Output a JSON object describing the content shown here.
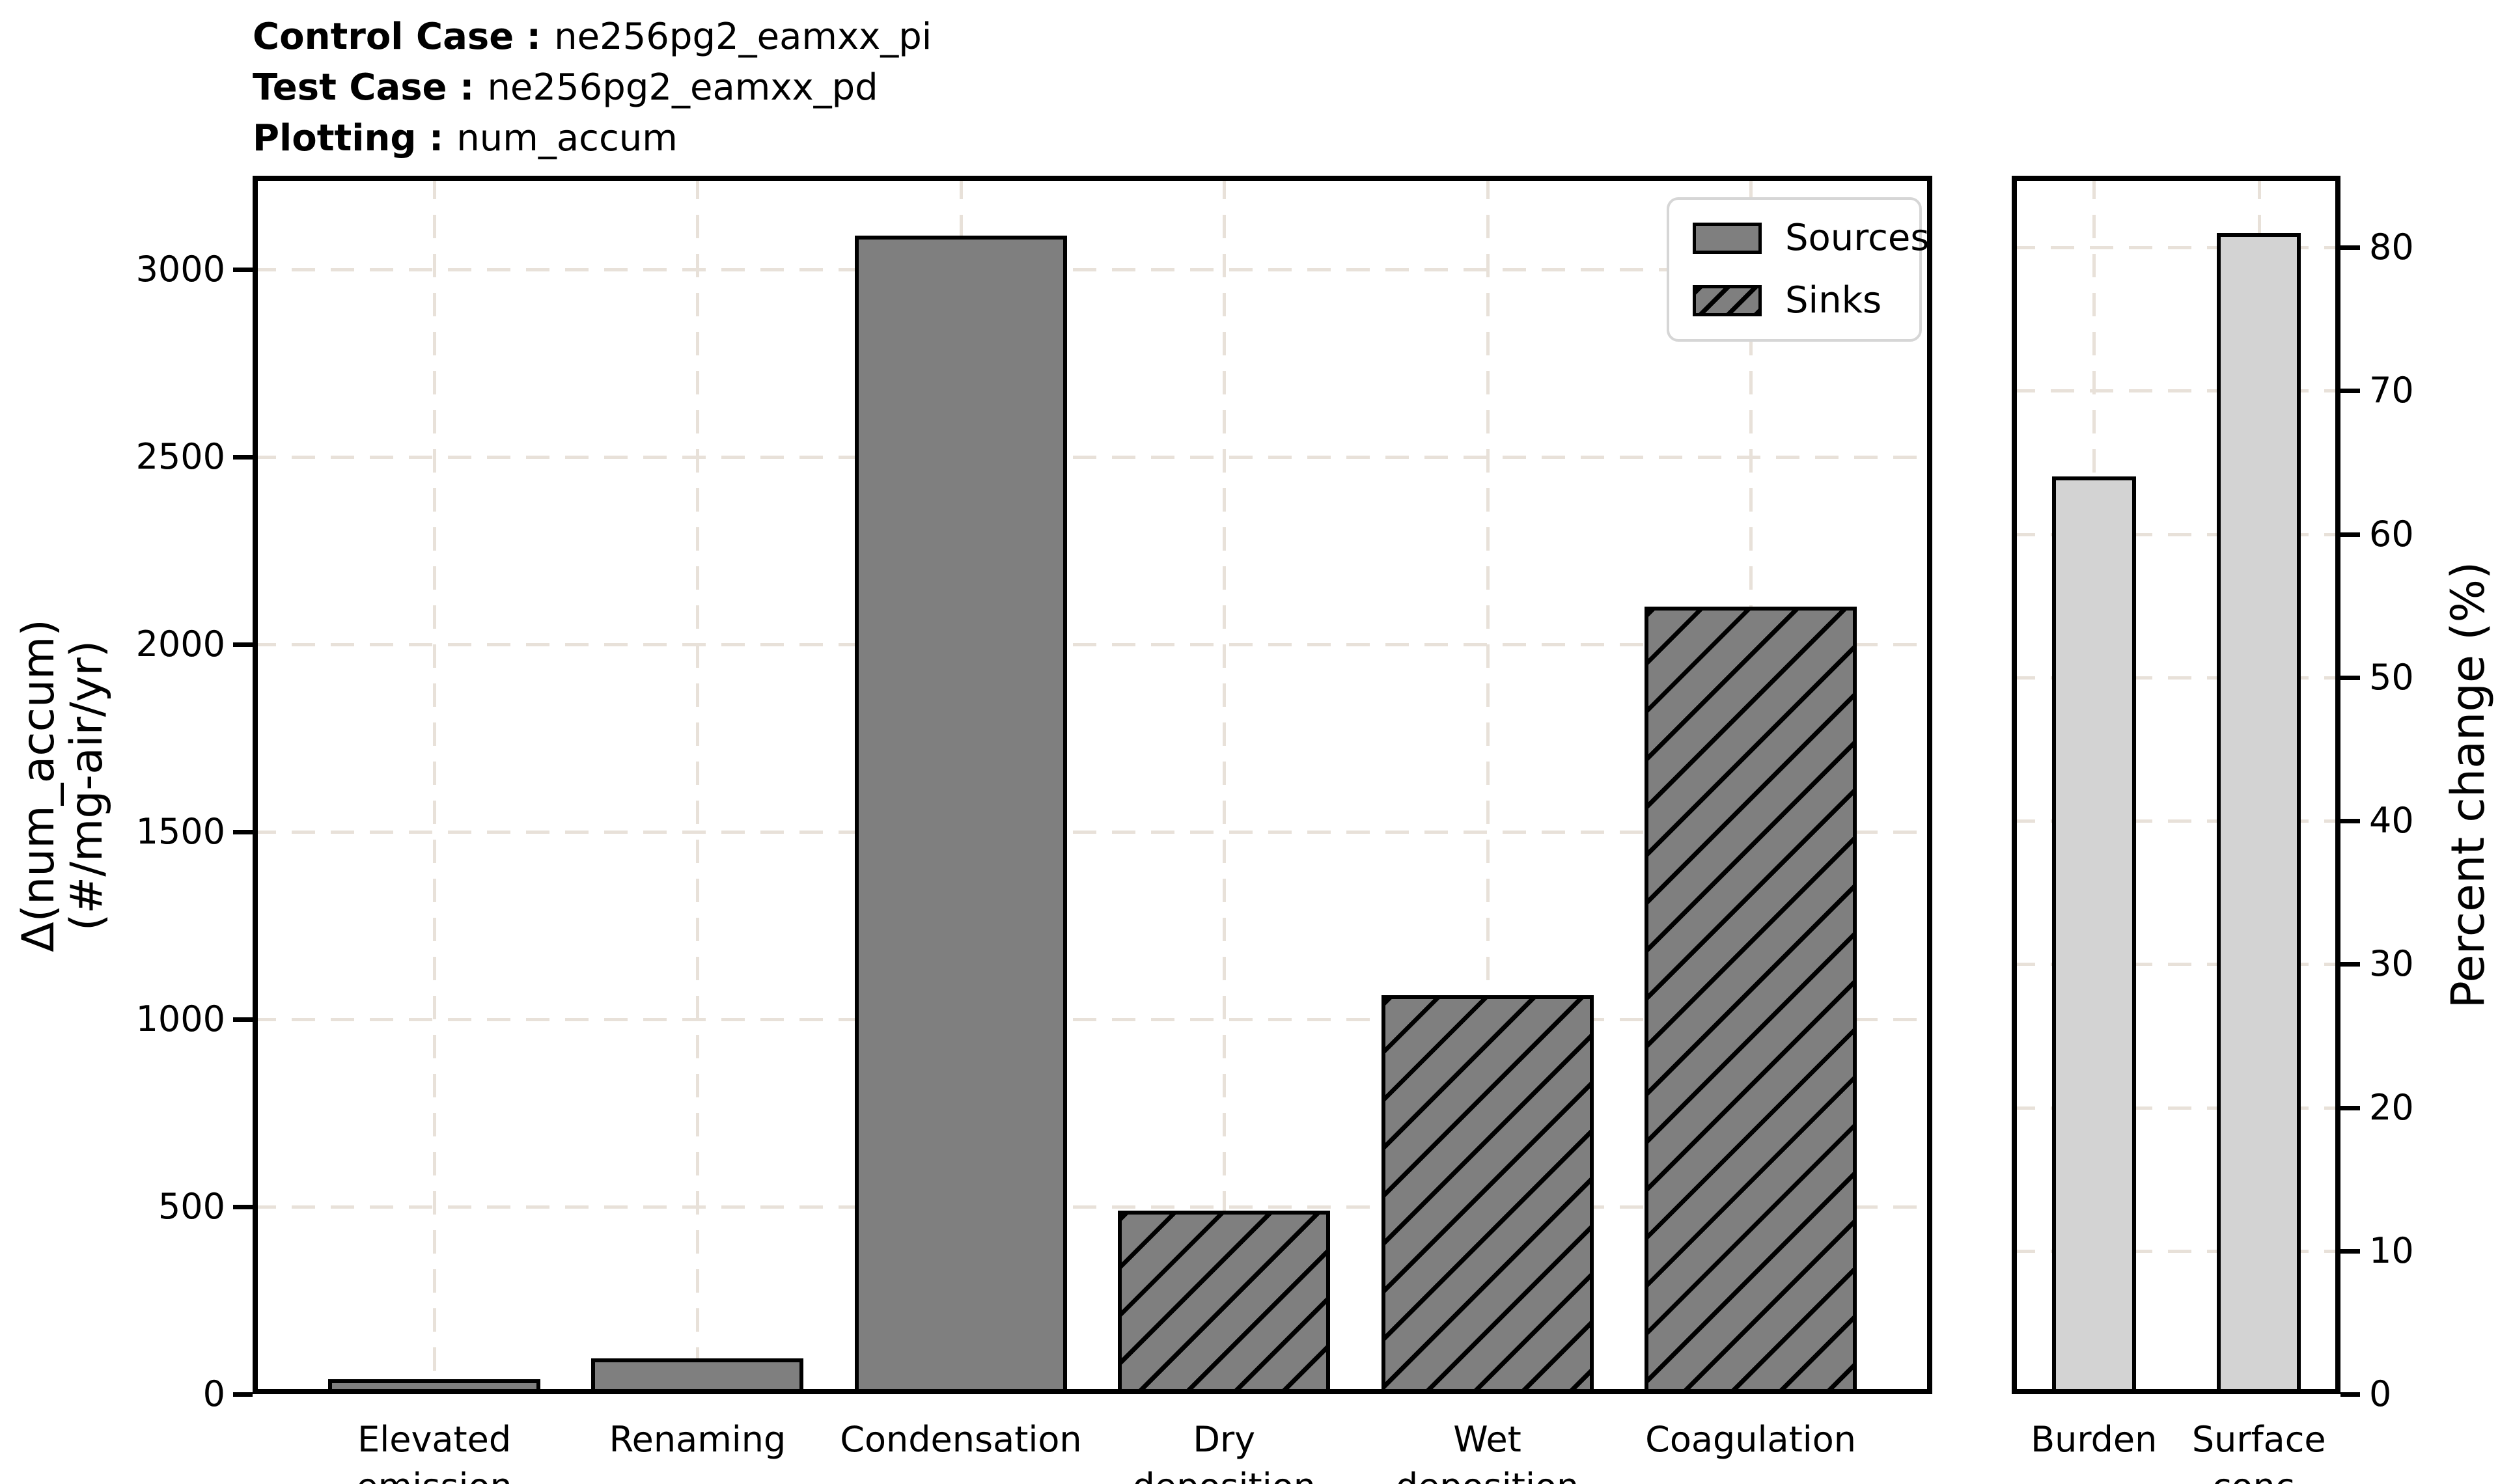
{
  "header": {
    "control_case_label": "Control Case :",
    "control_case_value": "ne256pg2_eamxx_pi",
    "test_case_label": "Test Case :",
    "test_case_value": "ne256pg2_eamxx_pd",
    "plotting_label": "Plotting :",
    "plotting_value": "num_accum"
  },
  "colors": {
    "bar_gray": "#7f7f7f",
    "bar_light_gray": "#d3d3d3",
    "bar_edge": "#000000",
    "grid": "#e8e1d9",
    "legend_border": "#d6d6d6"
  },
  "chart_data": [
    {
      "type": "bar",
      "title": "",
      "categories": [
        "Elevated\nemission",
        "Renaming",
        "Condensation",
        "Dry\ndeposition",
        "Wet\ndeposition",
        "Coagulation"
      ],
      "series": [
        {
          "name": "Sources",
          "hatch": false,
          "values": [
            40,
            95,
            3090,
            null,
            null,
            null
          ]
        },
        {
          "name": "Sinks",
          "hatch": true,
          "values": [
            null,
            null,
            null,
            490,
            1065,
            2100
          ]
        }
      ],
      "ylabel_lines": [
        "Δ(num_accum)",
        "(#/mg-air/yr)"
      ],
      "yticks": [
        0,
        500,
        1000,
        1500,
        2000,
        2500,
        3000
      ],
      "ylim": [
        0,
        3250
      ],
      "grid": true,
      "legend_position": "upper right"
    },
    {
      "type": "bar",
      "title": "",
      "categories": [
        "Burden",
        "Surface\nconc."
      ],
      "values": [
        64,
        81
      ],
      "light": true,
      "ylabel": "Percent change (%)",
      "yticks": [
        0,
        10,
        20,
        30,
        40,
        50,
        60,
        70,
        80
      ],
      "ylim": [
        0,
        85
      ],
      "grid": true
    }
  ]
}
